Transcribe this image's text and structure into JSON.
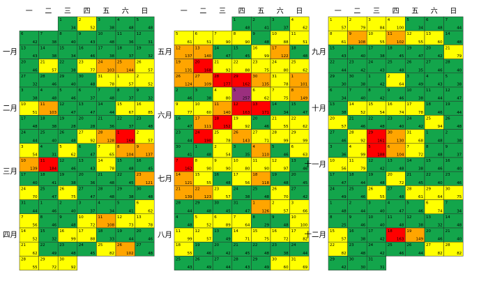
{
  "chart_data": {
    "type": "calendar_heatmap",
    "weekdays": [
      "一",
      "二",
      "三",
      "四",
      "五",
      "六",
      "日"
    ],
    "levels": [
      {
        "max": 50,
        "color": "#13a54b"
      },
      {
        "max": 100,
        "color": "#ffff00"
      },
      {
        "max": 150,
        "color": "#ffa500"
      },
      {
        "max": 200,
        "color": "#ff0000"
      },
      {
        "max": 300,
        "color": "#9b2f7e"
      }
    ],
    "panels": [
      {
        "months": [
          {
            "name": "一月",
            "days": [
              null,
              null,
              1,
              2,
              3,
              4,
              5,
              6,
              7,
              8,
              9,
              10,
              11,
              12,
              13,
              14,
              15,
              16,
              17,
              18,
              19,
              20,
              21,
              22,
              23,
              24,
              25,
              26,
              27,
              28,
              29,
              30,
              31
            ],
            "values": [
              null,
              null,
              34,
              52,
              38,
              48,
              48,
              42,
              38,
              40,
              43,
              48,
              36,
              31,
              43,
              38,
              34,
              46,
              38,
              37,
              32,
              46,
              57,
              38,
              77,
              103,
              144,
              57,
              32,
              46,
              40,
              48,
              78
            ]
          },
          {
            "name": "二月",
            "days": [
              null,
              null,
              null,
              null,
              null,
              1,
              2,
              3,
              4,
              5,
              6,
              7,
              8,
              9,
              10,
              11,
              12,
              13,
              14,
              15,
              16,
              17,
              18,
              19,
              20,
              21,
              22,
              23,
              24,
              25,
              26,
              27,
              28
            ],
            "values": [
              null,
              null,
              null,
              null,
              null,
              57,
              52,
              38,
              48,
              46,
              37,
              48,
              37,
              32,
              51,
              103,
              47,
              47,
              44,
              67,
              85,
              48,
              38,
              28,
              28,
              36,
              37,
              48,
              44,
              40,
              48,
              92,
              128
            ]
          },
          {
            "name": "三月",
            "days": [
              null,
              null,
              null,
              null,
              null,
              1,
              2,
              3,
              4,
              5,
              6,
              7,
              8,
              9,
              10,
              11,
              12,
              13,
              14,
              15,
              16,
              17,
              18,
              19,
              20,
              21,
              22,
              23,
              24,
              25,
              26,
              27,
              28,
              29,
              30,
              31
            ],
            "values": [
              null,
              null,
              null,
              null,
              null,
              168,
              57,
              54,
              31,
              62,
              47,
              65,
              104,
              137,
              139,
              184,
              46,
              43,
              78,
              48,
              45,
              40,
              41,
              38,
              36,
              48,
              45,
              121,
              70,
              47,
              75,
              47,
              48,
              38,
              48,
              44
            ]
          },
          {
            "name": "四月",
            "days": [
              null,
              1,
              2,
              3,
              4,
              5,
              6,
              7,
              8,
              9,
              10,
              11,
              12,
              13,
              14,
              15,
              16,
              17,
              18,
              19,
              20,
              21,
              22,
              23,
              24,
              25,
              26,
              27,
              28,
              29,
              30
            ],
            "values": [
              null,
              46,
              40,
              37,
              34,
              41,
              62,
              56,
              46,
              48,
              72,
              108,
              73,
              78,
              52,
              32,
              99,
              88,
              33,
              44,
              46,
              62,
              49,
              48,
              45,
              82,
              102,
              48,
              55,
              72,
              92
            ]
          }
        ]
      },
      {
        "months": [
          {
            "name": "五月",
            "days": [
              null,
              null,
              null,
              1,
              2,
              3,
              4,
              5,
              6,
              7,
              8,
              9,
              10,
              11,
              12,
              13,
              14,
              15,
              16,
              17,
              18,
              19,
              20,
              21,
              22,
              23,
              24,
              25,
              26,
              27,
              28,
              29,
              30,
              31
            ],
            "values": [
              null,
              null,
              null,
              48,
              41,
              37,
              62,
              61,
              51,
              90,
              90,
              48,
              88,
              51,
              137,
              140,
              47,
              45,
              99,
              122,
              48,
              131,
              168,
              92,
              88,
              75,
              80,
              62,
              124,
              109,
              177,
              162,
              135,
              78
            ]
          },
          {
            "name": "六月",
            "days": [
              null,
              null,
              null,
              null,
              null,
              null,
              1,
              2,
              3,
              4,
              5,
              6,
              7,
              8,
              9,
              10,
              11,
              12,
              13,
              14,
              15,
              16,
              17,
              18,
              19,
              20,
              21,
              22,
              23,
              24,
              25,
              26,
              27,
              28,
              29,
              30
            ],
            "values": [
              null,
              null,
              null,
              null,
              null,
              null,
              101,
              46,
              38,
              80,
              257,
              62,
              75,
              149,
              77,
              60,
              140,
              163,
              171,
              34,
              47,
              47,
              111,
              152,
              92,
              46,
              55,
              62,
              44,
              190,
              78,
              143,
              71,
              99,
              99,
              41
            ]
          },
          {
            "name": "七月",
            "days": [
              null,
              1,
              2,
              3,
              4,
              5,
              6,
              7,
              8,
              9,
              10,
              11,
              12,
              13,
              14,
              15,
              16,
              17,
              18,
              19,
              20,
              21,
              22,
              23,
              24,
              25,
              26,
              27,
              28,
              29,
              30,
              31
            ],
            "values": [
              null,
              48,
              54,
              35,
              110,
              46,
              63,
              162,
              90,
              90,
              80,
              90,
              97,
              46,
              121,
              55,
              48,
              56,
              118,
              48,
              45,
              139,
              123,
              57,
              38,
              48,
              70,
              42,
              44,
              48,
              45,
              47
            ]
          },
          {
            "name": "八月",
            "days": [
              null,
              null,
              null,
              null,
              1,
              2,
              3,
              4,
              5,
              6,
              7,
              8,
              9,
              10,
              11,
              12,
              13,
              14,
              15,
              16,
              17,
              18,
              19,
              20,
              21,
              22,
              23,
              24,
              25,
              26,
              27,
              28,
              29,
              30,
              31
            ],
            "values": [
              null,
              null,
              null,
              null,
              126,
              57,
              66,
              48,
              52,
              89,
              64,
              29,
              48,
              100,
              99,
              57,
              49,
              71,
              75,
              72,
              82,
              55,
              46,
              42,
              45,
              48,
              38,
              44,
              43,
              49,
              44,
              43,
              49,
              60,
              69
            ]
          }
        ]
      },
      {
        "months": [
          {
            "name": "九月",
            "days": [
              1,
              2,
              3,
              4,
              5,
              6,
              7,
              8,
              9,
              10,
              11,
              12,
              13,
              14,
              15,
              16,
              17,
              18,
              19,
              20,
              21,
              22,
              23,
              24,
              25,
              26,
              27,
              28,
              29,
              30
            ],
            "values": [
              57,
              79,
              84,
              100,
              34,
              48,
              44,
              61,
              108,
              55,
              102,
              55,
              60,
              48,
              43,
              40,
              38,
              45,
              47,
              42,
              79,
              44,
              42,
              43,
              48,
              35,
              46,
              40,
              30,
              38
            ]
          },
          {
            "name": "十月",
            "days": [
              null,
              null,
              1,
              2,
              3,
              4,
              5,
              6,
              7,
              8,
              9,
              10,
              11,
              12,
              13,
              14,
              15,
              16,
              17,
              18,
              19,
              20,
              21,
              22,
              23,
              24,
              25,
              26,
              27,
              28,
              29,
              30,
              31
            ],
            "values": [
              null,
              null,
              42,
              64,
              49,
              43,
              38,
              34,
              40,
              42,
              46,
              38,
              44,
              47,
              38,
              52,
              54,
              74,
              78,
              46,
              44,
              57,
              46,
              48,
              40,
              42,
              94,
              48,
              46,
              92,
              161,
              130,
              68
            ]
          },
          {
            "name": "十一月",
            "days": [
              null,
              null,
              null,
              null,
              null,
              1,
              2,
              3,
              4,
              5,
              6,
              7,
              8,
              9,
              10,
              11,
              12,
              13,
              14,
              15,
              16,
              17,
              18,
              19,
              20,
              21,
              22,
              23,
              24,
              25,
              26,
              27,
              28,
              29,
              30
            ],
            "values": [
              null,
              null,
              null,
              null,
              null,
              48,
              38,
              36,
              99,
              188,
              104,
              72,
              48,
              37,
              56,
              79,
              42,
              48,
              38,
              46,
              40,
              47,
              44,
              48,
              72,
              45,
              40,
              46,
              49,
              46,
              55,
              48,
              61,
              64,
              75
            ]
          },
          {
            "name": "十二月",
            "days": [
              1,
              2,
              3,
              4,
              5,
              6,
              7,
              8,
              9,
              10,
              11,
              12,
              13,
              14,
              15,
              16,
              17,
              18,
              19,
              20,
              21,
              22,
              23,
              24,
              25,
              26,
              27,
              28,
              29,
              30,
              31
            ],
            "values": [
              48,
              44,
              40,
              47,
              46,
              74,
              34,
              25,
              46,
              40,
              48,
              38,
              32,
              48,
              57,
              38,
              42,
              163,
              149,
              46,
              40,
              82,
              48,
              42,
              46,
              44,
              82,
              82,
              42,
              30,
              31
            ]
          }
        ]
      }
    ]
  }
}
